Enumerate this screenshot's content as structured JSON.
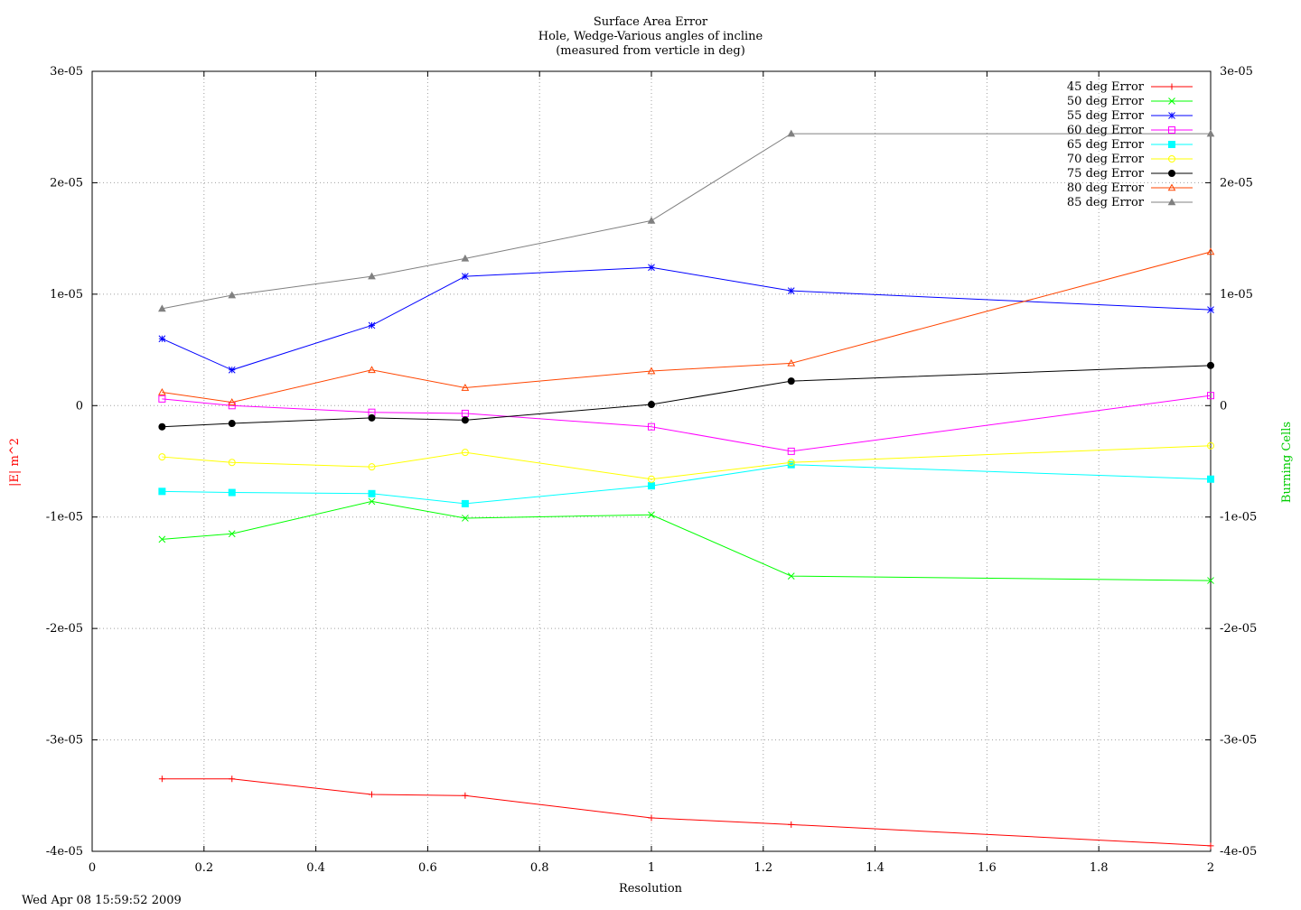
{
  "footer": {
    "timestamp": "Wed Apr 08 15:59:52 2009"
  },
  "chart_data": {
    "type": "line",
    "title": "Surface Area Error",
    "subtitle": [
      "Hole, Wedge-Various angles of incline",
      "(measured from verticle in deg)"
    ],
    "xlabel": "Resolution",
    "ylabel": "|E| m^2",
    "y2label": "Burning Cells",
    "xlim": [
      0,
      2
    ],
    "ylim": [
      -4e-05,
      3e-05
    ],
    "x_ticks": [
      "0",
      "0.2",
      "0.4",
      "0.6",
      "0.8",
      "1",
      "1.2",
      "1.4",
      "1.6",
      "1.8",
      "2"
    ],
    "y_ticks": [
      "-4e-05",
      "-3e-05",
      "-2e-05",
      "-1e-05",
      "0",
      "1e-05",
      "2e-05",
      "3e-05"
    ],
    "grid": true,
    "legend_position": "top-right",
    "x": [
      0.125,
      0.25,
      0.5,
      0.667,
      1,
      1.25,
      2
    ],
    "series": [
      {
        "name": "45 deg Error",
        "color": "#ff0000",
        "marker": "plus",
        "values": [
          -3.35e-05,
          -3.35e-05,
          -3.49e-05,
          -3.5e-05,
          -3.7e-05,
          -3.76e-05,
          -3.95e-05
        ]
      },
      {
        "name": "50 deg Error",
        "color": "#00ff00",
        "marker": "cross",
        "values": [
          -1.2e-05,
          -1.15e-05,
          -8.6e-06,
          -1.01e-05,
          -9.8e-06,
          -1.53e-05,
          -1.57e-05
        ]
      },
      {
        "name": "55 deg Error",
        "color": "#0000ff",
        "marker": "star",
        "values": [
          6e-06,
          3.2e-06,
          7.2e-06,
          1.16e-05,
          1.24e-05,
          1.03e-05,
          8.6e-06
        ]
      },
      {
        "name": "60 deg Error",
        "color": "#ff00ff",
        "marker": "open-square",
        "values": [
          6e-07,
          0.0,
          -6e-07,
          -7e-07,
          -1.9e-06,
          -4.1e-06,
          9e-07
        ]
      },
      {
        "name": "65 deg Error",
        "color": "#00ffff",
        "marker": "filled-square",
        "values": [
          -7.7e-06,
          -7.8e-06,
          -7.9e-06,
          -8.8e-06,
          -7.2e-06,
          -5.3e-06,
          -6.6e-06
        ]
      },
      {
        "name": "70 deg Error",
        "color": "#ffff00",
        "marker": "open-circle",
        "values": [
          -4.6e-06,
          -5.1e-06,
          -5.5e-06,
          -4.2e-06,
          -6.6e-06,
          -5.1e-06,
          -3.6e-06
        ]
      },
      {
        "name": "75 deg Error",
        "color": "#000000",
        "marker": "filled-circle",
        "values": [
          -1.9e-06,
          -1.6e-06,
          -1.1e-06,
          -1.3e-06,
          1e-07,
          2.2e-06,
          3.6e-06
        ]
      },
      {
        "name": "80 deg Error",
        "color": "#ff4500",
        "marker": "open-triangle",
        "values": [
          1.2e-06,
          3e-07,
          3.2e-06,
          1.6e-06,
          3.1e-06,
          3.8e-06,
          1.38e-05
        ]
      },
      {
        "name": "85 deg Error",
        "color": "#808080",
        "marker": "filled-triangle",
        "values": [
          8.7e-06,
          9.9e-06,
          1.16e-05,
          1.32e-05,
          1.66e-05,
          2.44e-05,
          2.44e-05
        ]
      }
    ]
  }
}
